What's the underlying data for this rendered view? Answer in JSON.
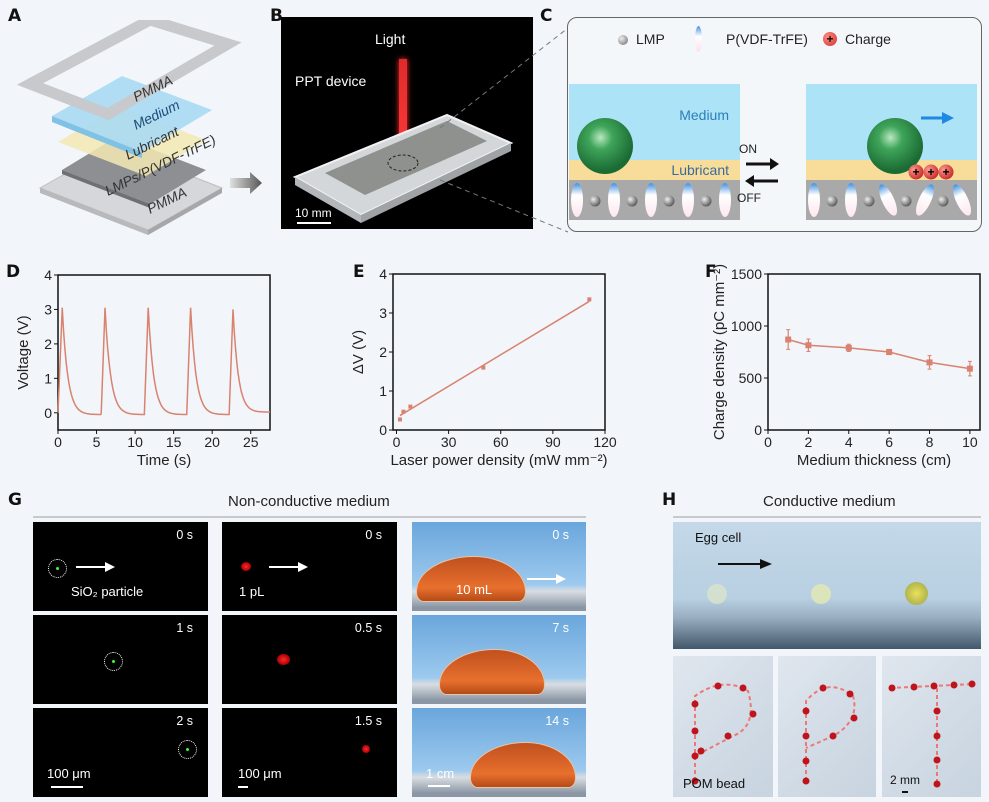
{
  "panels": {
    "A": {
      "letter": "A",
      "layers": [
        "PMMA",
        "Medium",
        "Lubricant",
        "LMPs/P(VDF-TrFE)",
        "PMMA"
      ]
    },
    "B": {
      "letter": "B",
      "light_label": "Light",
      "device_label": "PPT device",
      "scale_label": "10 mm"
    },
    "C": {
      "letter": "C",
      "legend": [
        {
          "icon": "lmp-sphere-icon",
          "label": "LMP"
        },
        {
          "icon": "pvdf-ellipse-icon",
          "label": "P(VDF-TrFE)"
        },
        {
          "icon": "charge-plus-icon",
          "label": "Charge"
        }
      ],
      "medium_label": "Medium",
      "lubricant_label": "Lubricant",
      "on_label": "ON",
      "off_label": "OFF",
      "colors": {
        "medium": "#ade3f7",
        "lubricant": "#f7dd99",
        "substrate": "#a9a9a9",
        "sphere": "#2e8b47",
        "charge": "#e53935",
        "arrow": "#1e88e5"
      }
    },
    "G": {
      "letter": "G",
      "title": "Non-conductive medium",
      "col1": {
        "times": [
          "0 s",
          "1 s",
          "2 s"
        ],
        "label": "SiO₂ particle",
        "scale": "100 μm"
      },
      "col2": {
        "times": [
          "0 s",
          "0.5 s",
          "1.5 s"
        ],
        "label": "1 pL",
        "scale": "100 μm"
      },
      "col3": {
        "times": [
          "0 s",
          "7 s",
          "14 s"
        ],
        "label": "10 mL",
        "scale": "1 cm"
      }
    },
    "H": {
      "letter": "H",
      "title": "Conductive medium",
      "egg_label": "Egg cell",
      "bead_label": "POM bead",
      "scale": "2 mm"
    }
  },
  "chart_data": [
    {
      "id": "D",
      "type": "line",
      "title": "",
      "xlabel": "Time (s)",
      "ylabel": "Voltage (V)",
      "xlim": [
        0,
        27.5
      ],
      "ylim": [
        -0.5,
        4
      ],
      "xticks": [
        0,
        5,
        10,
        15,
        20,
        25
      ],
      "yticks": [
        0,
        1,
        2,
        3,
        4
      ],
      "color": "#d9826f",
      "peaks": [
        {
          "rise_start": 0.0,
          "peak_t": 0.55,
          "peak_v": 3.05
        },
        {
          "rise_start": 5.6,
          "peak_t": 6.1,
          "peak_v": 3.05
        },
        {
          "rise_start": 11.2,
          "peak_t": 11.7,
          "peak_v": 3.05
        },
        {
          "rise_start": 16.7,
          "peak_t": 17.2,
          "peak_v": 3.05
        },
        {
          "rise_start": 22.2,
          "peak_t": 22.7,
          "peak_v": 3.0
        }
      ],
      "trough_v": -0.05,
      "end_t": 27.5,
      "end_v": 0.02
    },
    {
      "id": "E",
      "type": "scatter",
      "title": "",
      "xlabel": "Laser power density (mW mm⁻²)",
      "ylabel": "ΔV (V)",
      "xlim": [
        -2,
        120
      ],
      "ylim": [
        0,
        4
      ],
      "xticks": [
        0,
        30,
        60,
        90,
        120
      ],
      "yticks": [
        0,
        1,
        2,
        3,
        4
      ],
      "color": "#d9826f",
      "points": [
        {
          "x": 2,
          "y": 0.27
        },
        {
          "x": 4,
          "y": 0.47
        },
        {
          "x": 8,
          "y": 0.6
        },
        {
          "x": 50,
          "y": 1.6
        },
        {
          "x": 111,
          "y": 3.35
        }
      ],
      "fit": {
        "x": [
          2,
          111
        ],
        "y": [
          0.37,
          3.3
        ]
      }
    },
    {
      "id": "F",
      "type": "line",
      "title": "",
      "xlabel": "Medium thickness (cm)",
      "ylabel": "Charge density (pC mm⁻²)",
      "xlim": [
        0,
        10.5
      ],
      "ylim": [
        0,
        1500
      ],
      "xticks": [
        0,
        2,
        4,
        6,
        8,
        10
      ],
      "yticks": [
        0,
        500,
        1000,
        1500
      ],
      "color": "#d9826f",
      "points": [
        {
          "x": 1,
          "y": 870,
          "err": 95
        },
        {
          "x": 2,
          "y": 815,
          "err": 60
        },
        {
          "x": 4,
          "y": 790,
          "err": 35
        },
        {
          "x": 6,
          "y": 750,
          "err": 25
        },
        {
          "x": 8,
          "y": 650,
          "err": 65
        },
        {
          "x": 10,
          "y": 590,
          "err": 70
        }
      ]
    }
  ]
}
